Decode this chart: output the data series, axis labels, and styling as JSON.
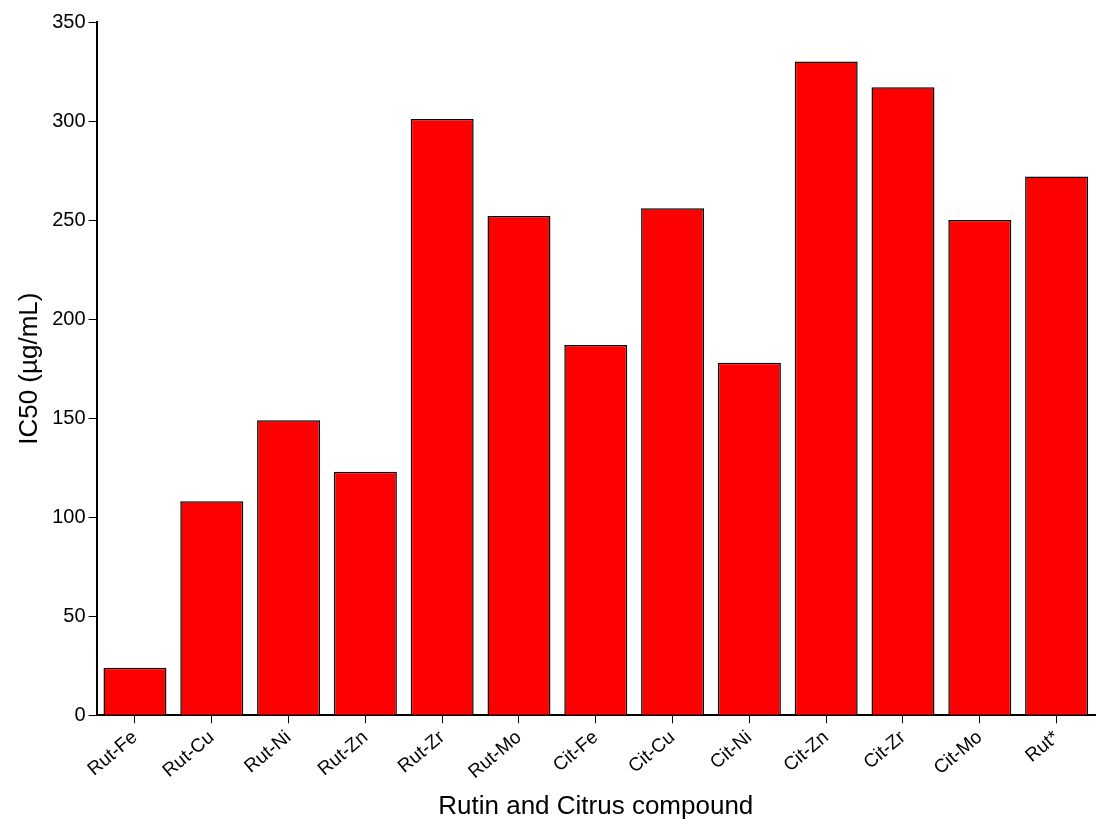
{
  "chart_data": {
    "type": "bar",
    "xlabel": "Rutin and Citrus compound",
    "ylabel": "IC50 (µg/mL)",
    "categories": [
      "Rut-Fe",
      "Rut-Cu",
      "Rut-Ni",
      "Rut-Zn",
      "Rut-Zr",
      "Rut-Mo",
      "Cit-Fe",
      "Cit-Cu",
      "Cit-Ni",
      "Cit-Zn",
      "Cit-Zr",
      "Cit-Mo",
      "Rut*"
    ],
    "values": [
      24,
      108,
      149,
      123,
      301,
      252,
      187,
      256,
      178,
      330,
      317,
      250,
      272
    ],
    "color": "#ff0000",
    "ylim": [
      0,
      350
    ],
    "yticks": [
      0,
      50,
      100,
      150,
      200,
      250,
      300,
      350
    ],
    "grid": false,
    "legend": false
  }
}
